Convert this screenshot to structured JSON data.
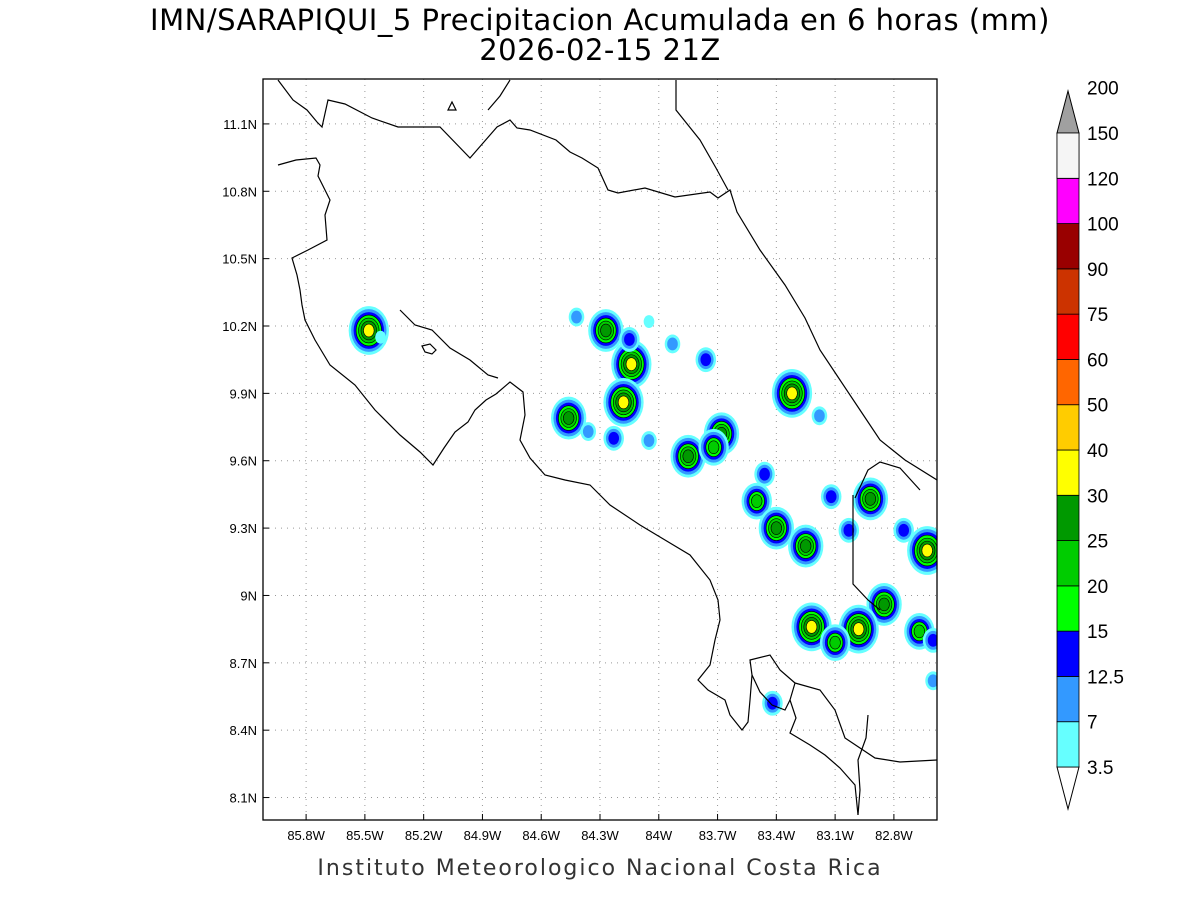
{
  "header": {
    "title_line1": "IMN/SARAPIQUI_5 Precipitacion Acumulada en 6 horas (mm)",
    "title_line2": "2026-02-15 21Z"
  },
  "footer": {
    "credit": "Instituto Meteorologico Nacional Costa Rica"
  },
  "map": {
    "lon_range": [
      -86.02,
      -82.58
    ],
    "lat_range": [
      8.0,
      11.3
    ],
    "lon_ticks": [
      {
        "value": -85.8,
        "label": "85.8W"
      },
      {
        "value": -85.5,
        "label": "85.5W"
      },
      {
        "value": -85.2,
        "label": "85.2W"
      },
      {
        "value": -84.9,
        "label": "84.9W"
      },
      {
        "value": -84.6,
        "label": "84.6W"
      },
      {
        "value": -84.3,
        "label": "84.3W"
      },
      {
        "value": -84.0,
        "label": "84W"
      },
      {
        "value": -83.7,
        "label": "83.7W"
      },
      {
        "value": -83.4,
        "label": "83.4W"
      },
      {
        "value": -83.1,
        "label": "83.1W"
      },
      {
        "value": -82.8,
        "label": "82.8W"
      }
    ],
    "lat_ticks": [
      {
        "value": 11.1,
        "label": "11.1N"
      },
      {
        "value": 10.8,
        "label": "10.8N"
      },
      {
        "value": 10.5,
        "label": "10.5N"
      },
      {
        "value": 10.2,
        "label": "10.2N"
      },
      {
        "value": 9.9,
        "label": "9.9N"
      },
      {
        "value": 9.6,
        "label": "9.6N"
      },
      {
        "value": 9.3,
        "label": "9.3N"
      },
      {
        "value": 9.0,
        "label": "9N"
      },
      {
        "value": 8.7,
        "label": "8.7N"
      },
      {
        "value": 8.4,
        "label": "8.4N"
      },
      {
        "value": 8.1,
        "label": "8.1N"
      }
    ],
    "grid": "dotted"
  },
  "colorbar": {
    "bins": [
      {
        "label": "3.5",
        "color": "#66ffff"
      },
      {
        "label": "7",
        "color": "#3399ff"
      },
      {
        "label": "12.5",
        "color": "#0000ff"
      },
      {
        "label": "15",
        "color": "#00ff00"
      },
      {
        "label": "20",
        "color": "#00cc00"
      },
      {
        "label": "25",
        "color": "#009900"
      },
      {
        "label": "30",
        "color": "#ffff00"
      },
      {
        "label": "40",
        "color": "#ffcc00"
      },
      {
        "label": "50",
        "color": "#ff6600"
      },
      {
        "label": "60",
        "color": "#ff0000"
      },
      {
        "label": "75",
        "color": "#cc3300"
      },
      {
        "label": "90",
        "color": "#990000"
      },
      {
        "label": "100",
        "color": "#ff00ff"
      },
      {
        "label": "120",
        "color": "#9933cc"
      },
      {
        "label": "150",
        "color": "#f5f5f5"
      },
      {
        "label": "200",
        "color": ""
      }
    ],
    "upper_arrow_color": "#a0a0a0",
    "lower_arrow_color": "#ffffff"
  },
  "precip_cells": [
    {
      "lon": -85.48,
      "lat": 10.18,
      "max_mm": 30
    },
    {
      "lon": -85.42,
      "lat": 10.15,
      "max_mm": 3.5
    },
    {
      "lon": -84.42,
      "lat": 10.24,
      "max_mm": 7
    },
    {
      "lon": -84.27,
      "lat": 10.18,
      "max_mm": 25
    },
    {
      "lon": -84.14,
      "lat": 10.03,
      "max_mm": 30
    },
    {
      "lon": -84.18,
      "lat": 9.86,
      "max_mm": 30
    },
    {
      "lon": -84.15,
      "lat": 10.14,
      "max_mm": 12.5
    },
    {
      "lon": -84.05,
      "lat": 10.22,
      "max_mm": 3.5
    },
    {
      "lon": -83.93,
      "lat": 10.12,
      "max_mm": 7
    },
    {
      "lon": -83.76,
      "lat": 10.05,
      "max_mm": 12.5
    },
    {
      "lon": -84.46,
      "lat": 9.79,
      "max_mm": 25
    },
    {
      "lon": -84.36,
      "lat": 9.73,
      "max_mm": 7
    },
    {
      "lon": -84.23,
      "lat": 9.7,
      "max_mm": 12.5
    },
    {
      "lon": -84.05,
      "lat": 9.69,
      "max_mm": 7
    },
    {
      "lon": -83.85,
      "lat": 9.62,
      "max_mm": 25
    },
    {
      "lon": -83.68,
      "lat": 9.72,
      "max_mm": 25
    },
    {
      "lon": -83.72,
      "lat": 9.66,
      "max_mm": 20
    },
    {
      "lon": -83.32,
      "lat": 9.9,
      "max_mm": 30
    },
    {
      "lon": -83.18,
      "lat": 9.8,
      "max_mm": 7
    },
    {
      "lon": -83.46,
      "lat": 9.54,
      "max_mm": 12.5
    },
    {
      "lon": -83.5,
      "lat": 9.42,
      "max_mm": 20
    },
    {
      "lon": -83.4,
      "lat": 9.3,
      "max_mm": 25
    },
    {
      "lon": -83.12,
      "lat": 9.44,
      "max_mm": 12.5
    },
    {
      "lon": -83.03,
      "lat": 9.29,
      "max_mm": 12.5
    },
    {
      "lon": -83.25,
      "lat": 9.22,
      "max_mm": 25
    },
    {
      "lon": -82.92,
      "lat": 9.43,
      "max_mm": 25
    },
    {
      "lon": -82.75,
      "lat": 9.29,
      "max_mm": 12.5
    },
    {
      "lon": -82.63,
      "lat": 9.2,
      "max_mm": 30
    },
    {
      "lon": -82.85,
      "lat": 8.96,
      "max_mm": 25
    },
    {
      "lon": -83.22,
      "lat": 8.86,
      "max_mm": 30
    },
    {
      "lon": -82.98,
      "lat": 8.85,
      "max_mm": 30
    },
    {
      "lon": -83.1,
      "lat": 8.79,
      "max_mm": 20
    },
    {
      "lon": -82.67,
      "lat": 8.84,
      "max_mm": 20
    },
    {
      "lon": -82.6,
      "lat": 8.8,
      "max_mm": 12.5
    },
    {
      "lon": -83.42,
      "lat": 8.52,
      "max_mm": 12.5
    },
    {
      "lon": -82.6,
      "lat": 8.62,
      "max_mm": 7
    }
  ]
}
